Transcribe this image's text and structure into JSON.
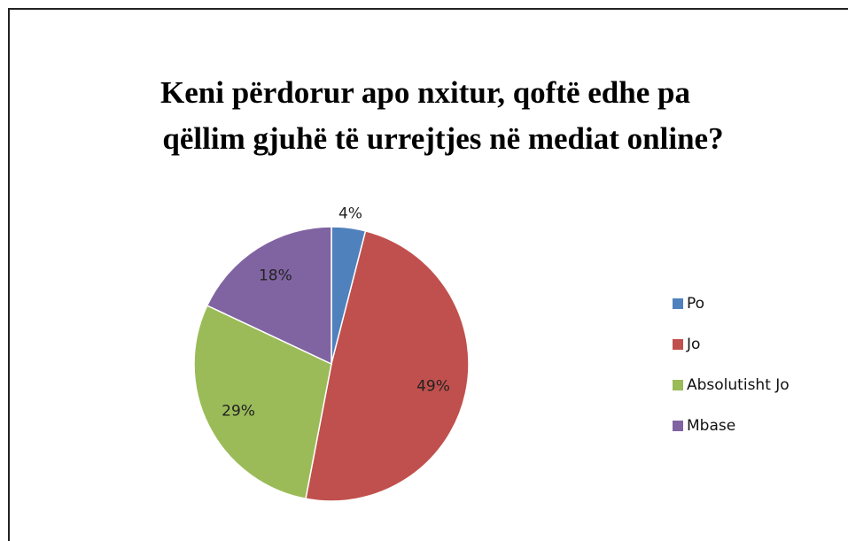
{
  "chart_data": {
    "type": "pie",
    "title": [
      "Keni përdorur apo nxitur, qoftë edhe pa",
      "qëllim gjuhë të urrejtjes në mediat online?"
    ],
    "categories": [
      "Po",
      "Jo",
      "Absolutisht Jo",
      "Mbase"
    ],
    "values": [
      4,
      49,
      29,
      18
    ],
    "value_labels": [
      "4%",
      "49%",
      "29%",
      "18%"
    ],
    "colors": [
      "#4f81bd",
      "#c0504d",
      "#9bbb59",
      "#8064a2"
    ],
    "legend": "right"
  }
}
